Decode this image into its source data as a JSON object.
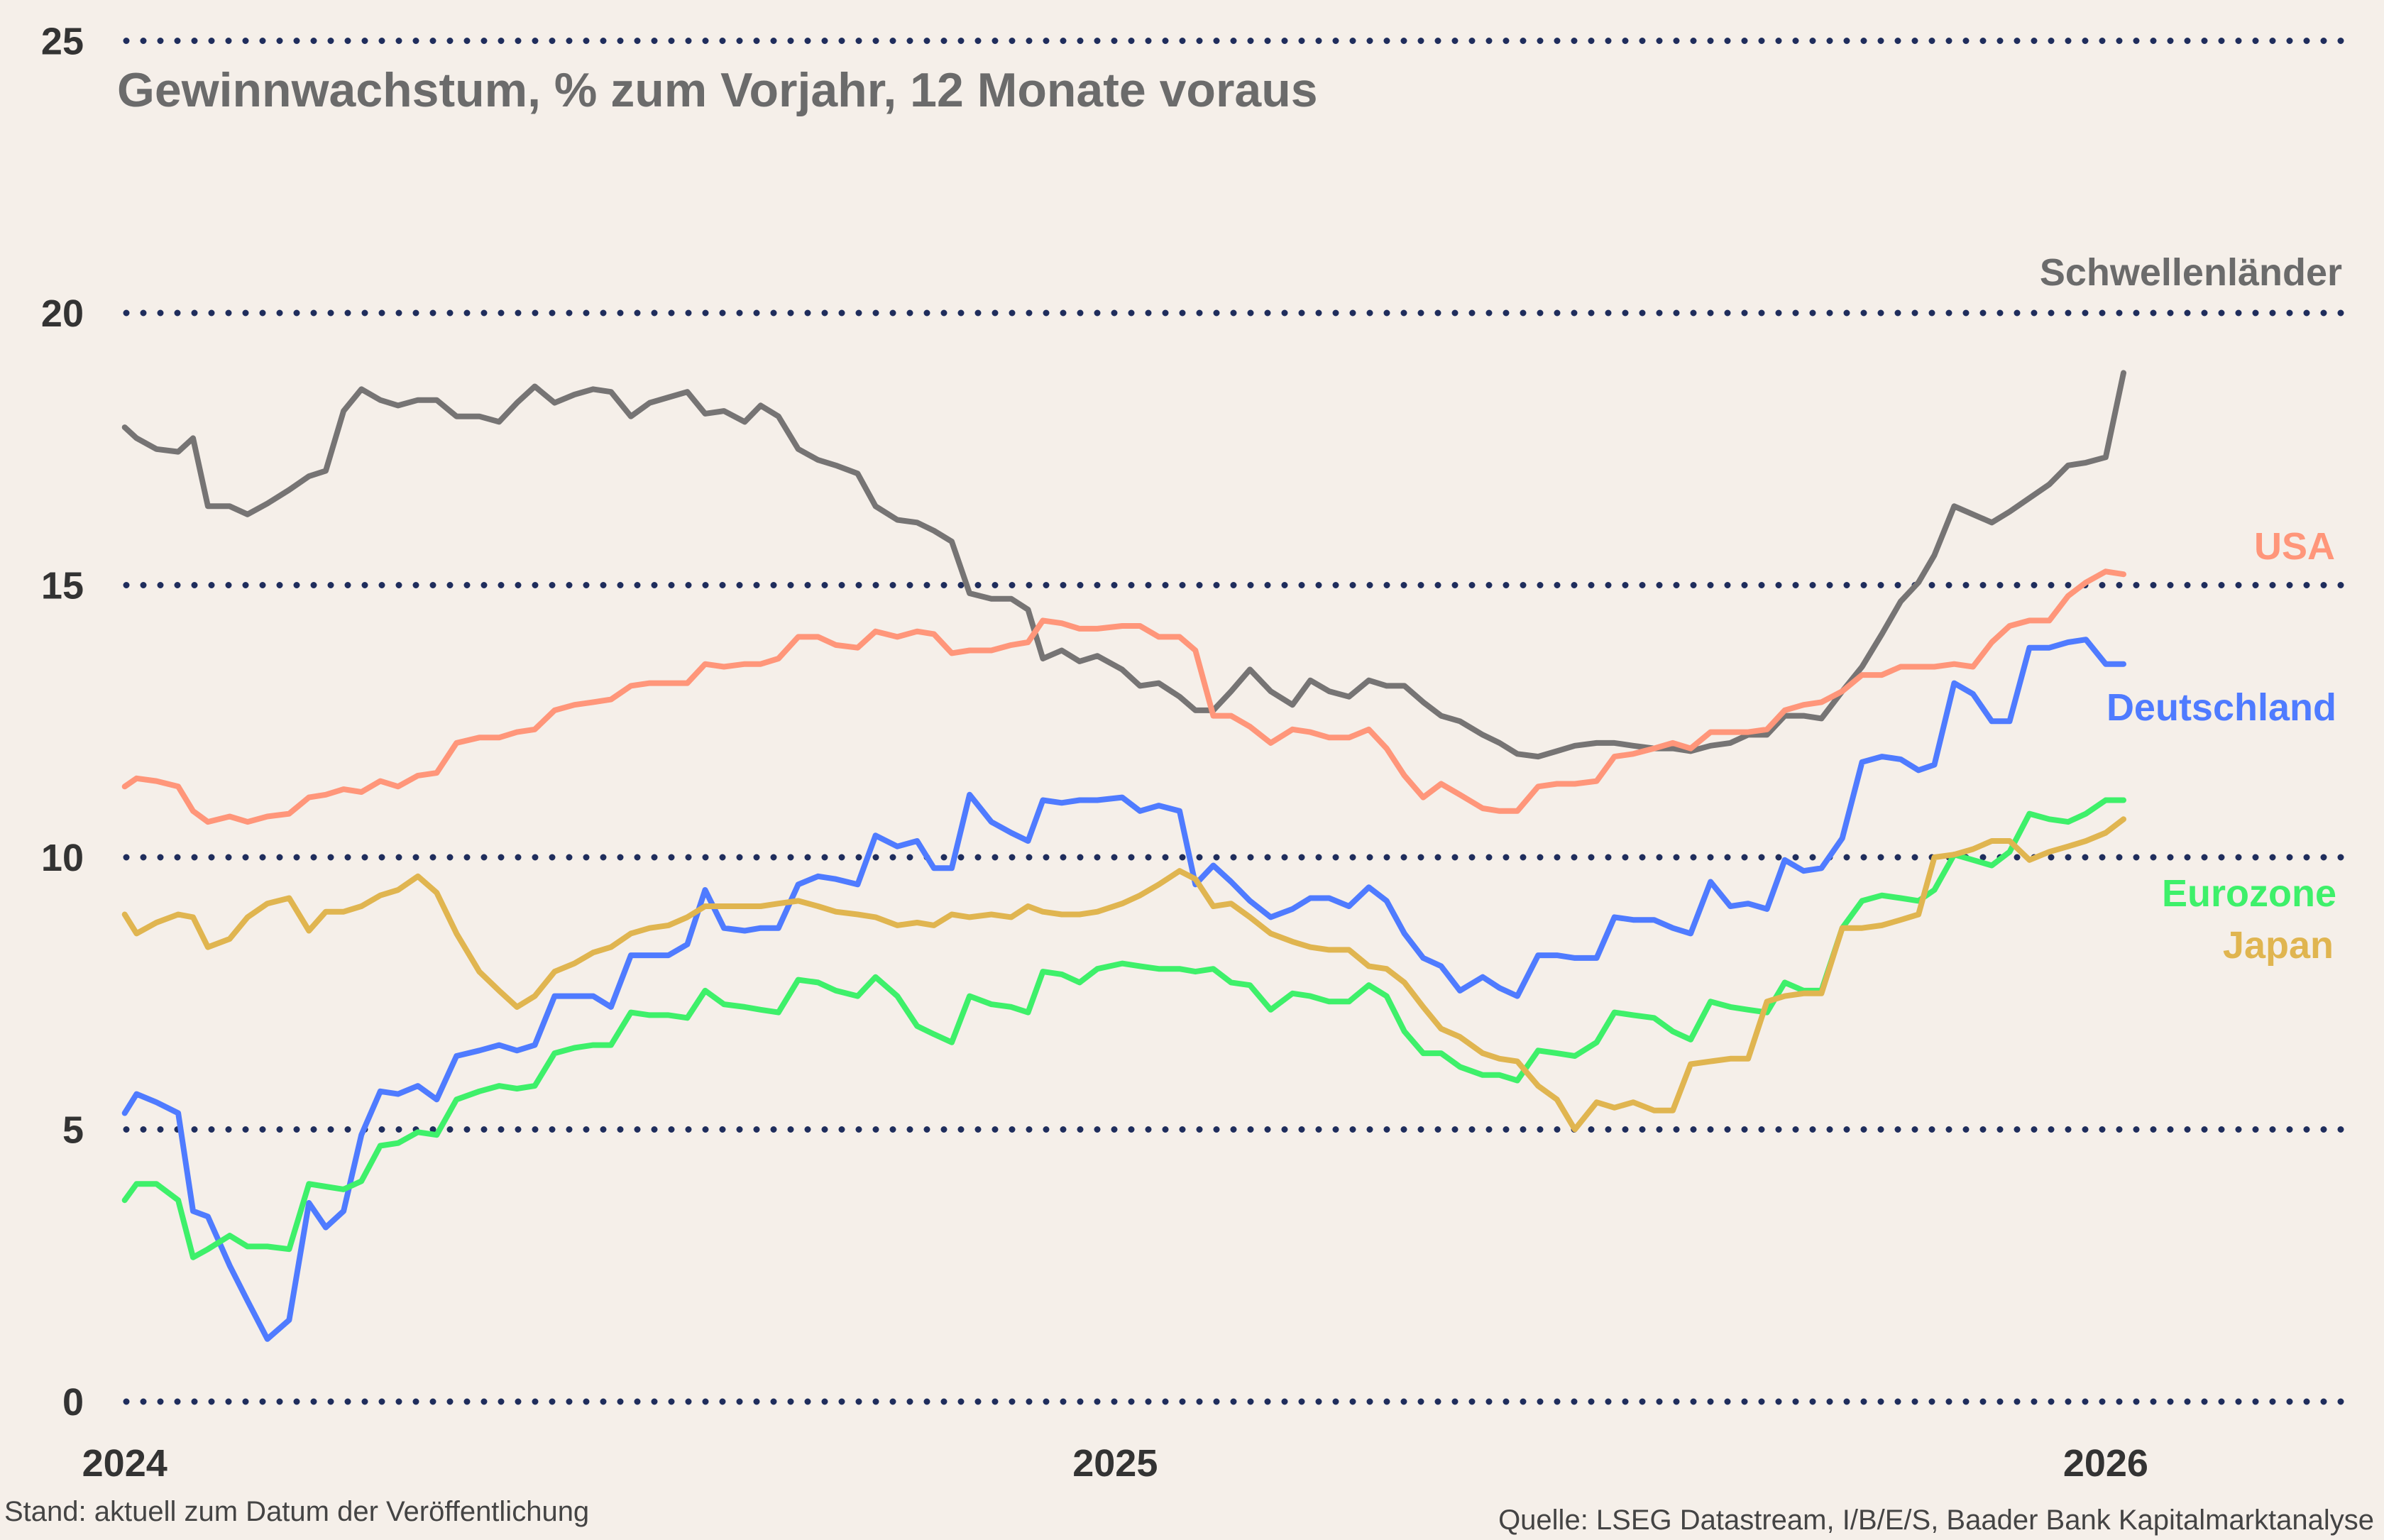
{
  "chart_data": {
    "type": "line",
    "title": "Gewinnwachstum, % zum Vorjahr, 12 Monate voraus",
    "xlabel": "",
    "ylabel": "",
    "xlim": [
      2024,
      2026.2
    ],
    "ylim": [
      0,
      25
    ],
    "yticks": [
      "0",
      "5",
      "10",
      "15",
      "20",
      "25"
    ],
    "xticks": [
      "2024",
      "2025",
      "2026"
    ],
    "grid": "horizontal dotted",
    "legend": "inline labels at right",
    "x": [
      2024.0,
      2024.012,
      2024.032,
      2024.054,
      2024.069,
      2024.084,
      2024.106,
      2024.124,
      2024.144,
      2024.166,
      2024.186,
      2024.203,
      2024.221,
      2024.239,
      2024.258,
      2024.276,
      2024.296,
      2024.315,
      2024.335,
      2024.358,
      2024.378,
      2024.396,
      2024.414,
      2024.434,
      2024.454,
      2024.473,
      2024.491,
      2024.511,
      2024.53,
      2024.549,
      2024.568,
      2024.586,
      2024.605,
      2024.626,
      2024.642,
      2024.66,
      2024.68,
      2024.7,
      2024.718,
      2024.74,
      2024.758,
      2024.78,
      2024.8,
      2024.817,
      2024.835,
      2024.853,
      2024.875,
      2024.895,
      2024.912,
      2024.927,
      2024.946,
      2024.964,
      2024.982,
      2025.007,
      2025.025,
      2025.044,
      2025.065,
      2025.081,
      2025.099,
      2025.117,
      2025.136,
      2025.157,
      2025.179,
      2025.197,
      2025.216,
      2025.236,
      2025.256,
      2025.274,
      2025.292,
      2025.311,
      2025.329,
      2025.348,
      2025.371,
      2025.388,
      2025.406,
      2025.427,
      2025.446,
      2025.464,
      2025.486,
      2025.504,
      2025.523,
      2025.544,
      2025.563,
      2025.581,
      2025.601,
      2025.621,
      2025.639,
      2025.658,
      2025.676,
      2025.695,
      2025.713,
      2025.734,
      2025.754,
      2025.774,
      2025.793,
      2025.811,
      2025.827,
      2025.847,
      2025.866,
      2025.885,
      2025.903,
      2025.923,
      2025.943,
      2025.962,
      2025.98,
      2026.0,
      2026.018
    ],
    "series": [
      {
        "name": "Schwellenländer",
        "color": "#767474",
        "values": [
          17.9,
          17.7,
          17.5,
          17.45,
          17.7,
          16.45,
          16.45,
          16.3,
          16.5,
          16.75,
          17.0,
          17.1,
          18.2,
          18.6,
          18.4,
          18.3,
          18.4,
          18.4,
          18.1,
          18.1,
          18.0,
          18.35,
          18.65,
          18.35,
          18.5,
          18.6,
          18.55,
          18.1,
          18.35,
          18.45,
          18.55,
          18.15,
          18.2,
          18.0,
          18.3,
          18.1,
          17.5,
          17.3,
          17.2,
          17.05,
          16.45,
          16.2,
          16.15,
          16.0,
          15.8,
          14.85,
          14.75,
          14.75,
          14.55,
          13.65,
          13.8,
          13.6,
          13.7,
          13.45,
          13.15,
          13.2,
          12.95,
          12.7,
          12.7,
          13.05,
          13.45,
          13.05,
          12.8,
          13.25,
          13.05,
          12.95,
          13.25,
          13.15,
          13.15,
          12.85,
          12.6,
          12.5,
          12.25,
          12.1,
          11.9,
          11.85,
          11.95,
          12.05,
          12.1,
          12.1,
          12.05,
          12.0,
          12.0,
          11.95,
          12.05,
          12.1,
          12.25,
          12.25,
          12.6,
          12.6,
          12.55,
          13.05,
          13.5,
          14.1,
          14.7,
          15.05,
          15.55,
          16.45,
          16.3,
          16.15,
          16.35,
          16.6,
          16.85,
          17.2,
          17.25,
          17.35,
          18.9
        ]
      },
      {
        "name": "USA",
        "color": "#ff967a",
        "values": [
          11.3,
          11.45,
          11.4,
          11.3,
          10.85,
          10.65,
          10.75,
          10.65,
          10.75,
          10.8,
          11.1,
          11.15,
          11.25,
          11.2,
          11.4,
          11.3,
          11.5,
          11.55,
          12.1,
          12.2,
          12.2,
          12.3,
          12.35,
          12.7,
          12.8,
          12.85,
          12.9,
          13.15,
          13.2,
          13.2,
          13.2,
          13.55,
          13.5,
          13.55,
          13.55,
          13.65,
          14.05,
          14.05,
          13.9,
          13.85,
          14.15,
          14.05,
          14.15,
          14.1,
          13.75,
          13.8,
          13.8,
          13.9,
          13.95,
          14.35,
          14.3,
          14.2,
          14.2,
          14.25,
          14.25,
          14.05,
          14.05,
          13.8,
          12.6,
          12.6,
          12.4,
          12.1,
          12.35,
          12.3,
          12.2,
          12.2,
          12.35,
          12.0,
          11.5,
          11.1,
          11.35,
          11.15,
          10.9,
          10.85,
          10.85,
          11.3,
          11.35,
          11.35,
          11.4,
          11.85,
          11.9,
          12.0,
          12.1,
          12.0,
          12.3,
          12.3,
          12.3,
          12.35,
          12.7,
          12.8,
          12.85,
          13.05,
          13.35,
          13.35,
          13.5,
          13.5,
          13.5,
          13.55,
          13.5,
          13.95,
          14.25,
          14.35,
          14.35,
          14.8,
          15.05,
          15.25,
          15.2
        ]
      },
      {
        "name": "Deutschland",
        "color": "#4f7bff",
        "values": [
          5.3,
          5.65,
          5.5,
          5.3,
          3.5,
          3.4,
          2.5,
          1.85,
          1.15,
          1.5,
          3.65,
          3.2,
          3.5,
          4.9,
          5.7,
          5.65,
          5.8,
          5.55,
          6.35,
          6.45,
          6.55,
          6.45,
          6.55,
          7.45,
          7.45,
          7.45,
          7.25,
          8.2,
          8.2,
          8.2,
          8.4,
          9.4,
          8.7,
          8.65,
          8.7,
          8.7,
          9.5,
          9.65,
          9.6,
          9.5,
          10.4,
          10.2,
          10.3,
          9.8,
          9.8,
          11.15,
          10.65,
          10.45,
          10.3,
          11.05,
          11.0,
          11.05,
          11.05,
          11.1,
          10.85,
          10.95,
          10.85,
          9.5,
          9.85,
          9.55,
          9.2,
          8.9,
          9.05,
          9.25,
          9.25,
          9.1,
          9.45,
          9.2,
          8.6,
          8.15,
          8.0,
          7.55,
          7.8,
          7.6,
          7.45,
          8.2,
          8.2,
          8.15,
          8.15,
          8.9,
          8.85,
          8.85,
          8.7,
          8.6,
          9.55,
          9.1,
          9.15,
          9.05,
          9.95,
          9.75,
          9.8,
          10.35,
          11.75,
          11.85,
          11.8,
          11.6,
          11.7,
          13.2,
          13.0,
          12.5,
          12.5,
          13.85,
          13.85,
          13.95,
          14.0,
          13.55,
          13.55
        ]
      },
      {
        "name": "Eurozone",
        "color": "#3ef06a",
        "values": [
          3.7,
          4.0,
          4.0,
          3.7,
          2.65,
          2.8,
          3.05,
          2.85,
          2.85,
          2.8,
          4.0,
          3.95,
          3.9,
          4.05,
          4.7,
          4.75,
          4.95,
          4.9,
          5.55,
          5.7,
          5.8,
          5.75,
          5.8,
          6.4,
          6.5,
          6.55,
          6.55,
          7.15,
          7.1,
          7.1,
          7.05,
          7.55,
          7.3,
          7.25,
          7.2,
          7.15,
          7.75,
          7.7,
          7.55,
          7.45,
          7.8,
          7.45,
          6.9,
          6.75,
          6.6,
          7.45,
          7.3,
          7.25,
          7.15,
          7.9,
          7.85,
          7.7,
          7.95,
          8.05,
          8.0,
          7.95,
          7.95,
          7.9,
          7.95,
          7.7,
          7.65,
          7.2,
          7.5,
          7.45,
          7.35,
          7.35,
          7.65,
          7.45,
          6.8,
          6.4,
          6.4,
          6.15,
          6.0,
          6.0,
          5.9,
          6.45,
          6.4,
          6.35,
          6.6,
          7.15,
          7.1,
          7.05,
          6.8,
          6.65,
          7.35,
          7.25,
          7.2,
          7.15,
          7.7,
          7.55,
          7.55,
          8.7,
          9.2,
          9.3,
          9.25,
          9.2,
          9.4,
          10.05,
          9.95,
          9.85,
          10.1,
          10.8,
          10.7,
          10.65,
          10.8,
          11.05,
          11.05
        ]
      },
      {
        "name": "Japan",
        "color": "#e0b550",
        "values": [
          8.95,
          8.6,
          8.8,
          8.95,
          8.9,
          8.35,
          8.5,
          8.9,
          9.15,
          9.25,
          8.65,
          9.0,
          9.0,
          9.1,
          9.3,
          9.4,
          9.65,
          9.35,
          8.6,
          7.9,
          7.55,
          7.25,
          7.45,
          7.9,
          8.05,
          8.25,
          8.35,
          8.6,
          8.7,
          8.75,
          8.9,
          9.1,
          9.1,
          9.1,
          9.1,
          9.15,
          9.2,
          9.1,
          9.0,
          8.95,
          8.9,
          8.75,
          8.8,
          8.75,
          8.95,
          8.9,
          8.95,
          8.9,
          9.1,
          9.0,
          8.95,
          8.95,
          9.0,
          9.15,
          9.3,
          9.5,
          9.75,
          9.6,
          9.1,
          9.15,
          8.9,
          8.6,
          8.45,
          8.35,
          8.3,
          8.3,
          8.0,
          7.95,
          7.7,
          7.25,
          6.85,
          6.7,
          6.4,
          6.3,
          6.25,
          5.8,
          5.55,
          5.0,
          5.5,
          5.4,
          5.5,
          5.35,
          5.35,
          6.2,
          6.25,
          6.3,
          6.3,
          7.35,
          7.45,
          7.5,
          7.5,
          8.7,
          8.7,
          8.75,
          8.85,
          8.95,
          10.0,
          10.05,
          10.15,
          10.3,
          10.3,
          9.95,
          10.1,
          10.2,
          10.3,
          10.45,
          10.7
        ]
      }
    ]
  },
  "footer": {
    "left": "Stand: aktuell zum Datum der Veröffentlichung",
    "right": "Quelle: LSEG Datastream, I/B/E/S, Baader Bank Kapitalmarktanalyse"
  },
  "colors": {
    "background": "#f5efe9",
    "grid": "#1f2d5c"
  }
}
